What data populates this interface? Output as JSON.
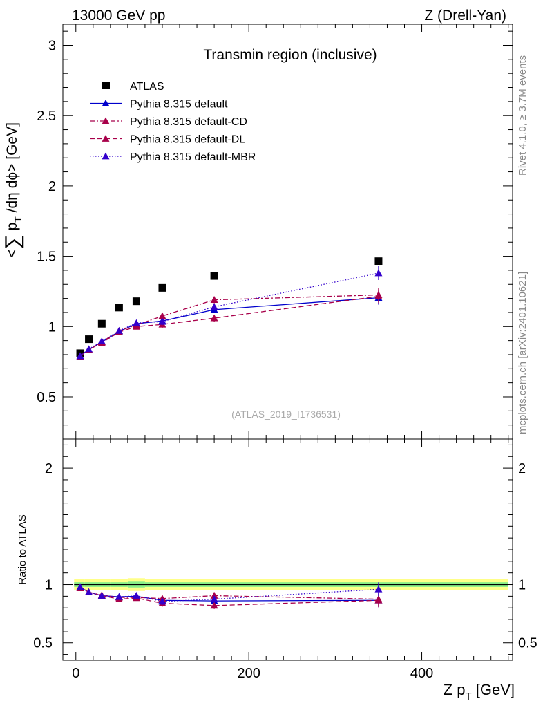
{
  "header": {
    "left": "13000 GeV pp",
    "right": "Z (Drell-Yan)"
  },
  "side_labels": {
    "rivet": "Rivet 4.1.0, ≥ 3.7M events",
    "mcplots": "mcplots.cern.ch [arXiv:2401.10621]"
  },
  "chart_data": {
    "type": "scatter",
    "title": "Transmin region (inclusive)",
    "analysis_id": "(ATLAS_2019_I1736531)",
    "xlabel": "Z p_T [GeV]",
    "ylabel": "<∑ p_T /dη dϕ> [GeV]",
    "ratio_ylabel": "Ratio to ATLAS",
    "xlim": [
      -15,
      505
    ],
    "ylim": [
      0.2,
      3.15
    ],
    "ratio_ylim": [
      0.35,
      2.25
    ],
    "x_ticks": [
      "0",
      "200",
      "400"
    ],
    "y_ticks": [
      "0.5",
      "1",
      "1.5",
      "2",
      "2.5",
      "3"
    ],
    "ratio_ticks": [
      "0.5",
      "1",
      "2"
    ],
    "x": [
      5,
      15,
      30,
      50,
      70,
      100,
      160,
      350
    ],
    "series": [
      {
        "name": "ATLAS",
        "style": "data",
        "color": "#000000",
        "values": [
          0.81,
          0.91,
          1.02,
          1.135,
          1.18,
          1.275,
          1.36,
          1.465
        ],
        "ratio": [
          1,
          1,
          1,
          1,
          1,
          1,
          1,
          1
        ]
      },
      {
        "name": "Pythia 8.315 default",
        "style": "solid",
        "color": "#0000cc",
        "values": [
          0.79,
          0.835,
          0.89,
          0.965,
          1.02,
          1.04,
          1.12,
          1.205
        ],
        "ratio": [
          0.975,
          0.935,
          0.905,
          0.895,
          0.9,
          0.865,
          0.86,
          0.865
        ]
      },
      {
        "name": "Pythia 8.315 default-CD",
        "style": "dashdot",
        "color": "#a8004a",
        "values": [
          0.79,
          0.835,
          0.89,
          0.97,
          1.01,
          1.075,
          1.19,
          1.225
        ],
        "ratio": [
          0.975,
          0.935,
          0.91,
          0.89,
          0.89,
          0.88,
          0.905,
          0.875
        ]
      },
      {
        "name": "Pythia 8.315 default-DL",
        "style": "dashed",
        "color": "#a8004a",
        "values": [
          0.785,
          0.835,
          0.885,
          0.96,
          1.0,
          1.015,
          1.06,
          1.215
        ],
        "ratio": [
          0.97,
          0.935,
          0.905,
          0.875,
          0.885,
          0.84,
          0.82,
          0.865
        ]
      },
      {
        "name": "Pythia 8.315 default-MBR",
        "style": "dotted",
        "color": "#3300cc",
        "values": [
          0.79,
          0.84,
          0.895,
          0.97,
          1.025,
          1.035,
          1.14,
          1.38
        ],
        "ratio": [
          0.98,
          0.935,
          0.905,
          0.895,
          0.905,
          0.855,
          0.875,
          0.96
        ]
      }
    ],
    "legend_position": "top-left",
    "grid": false
  }
}
